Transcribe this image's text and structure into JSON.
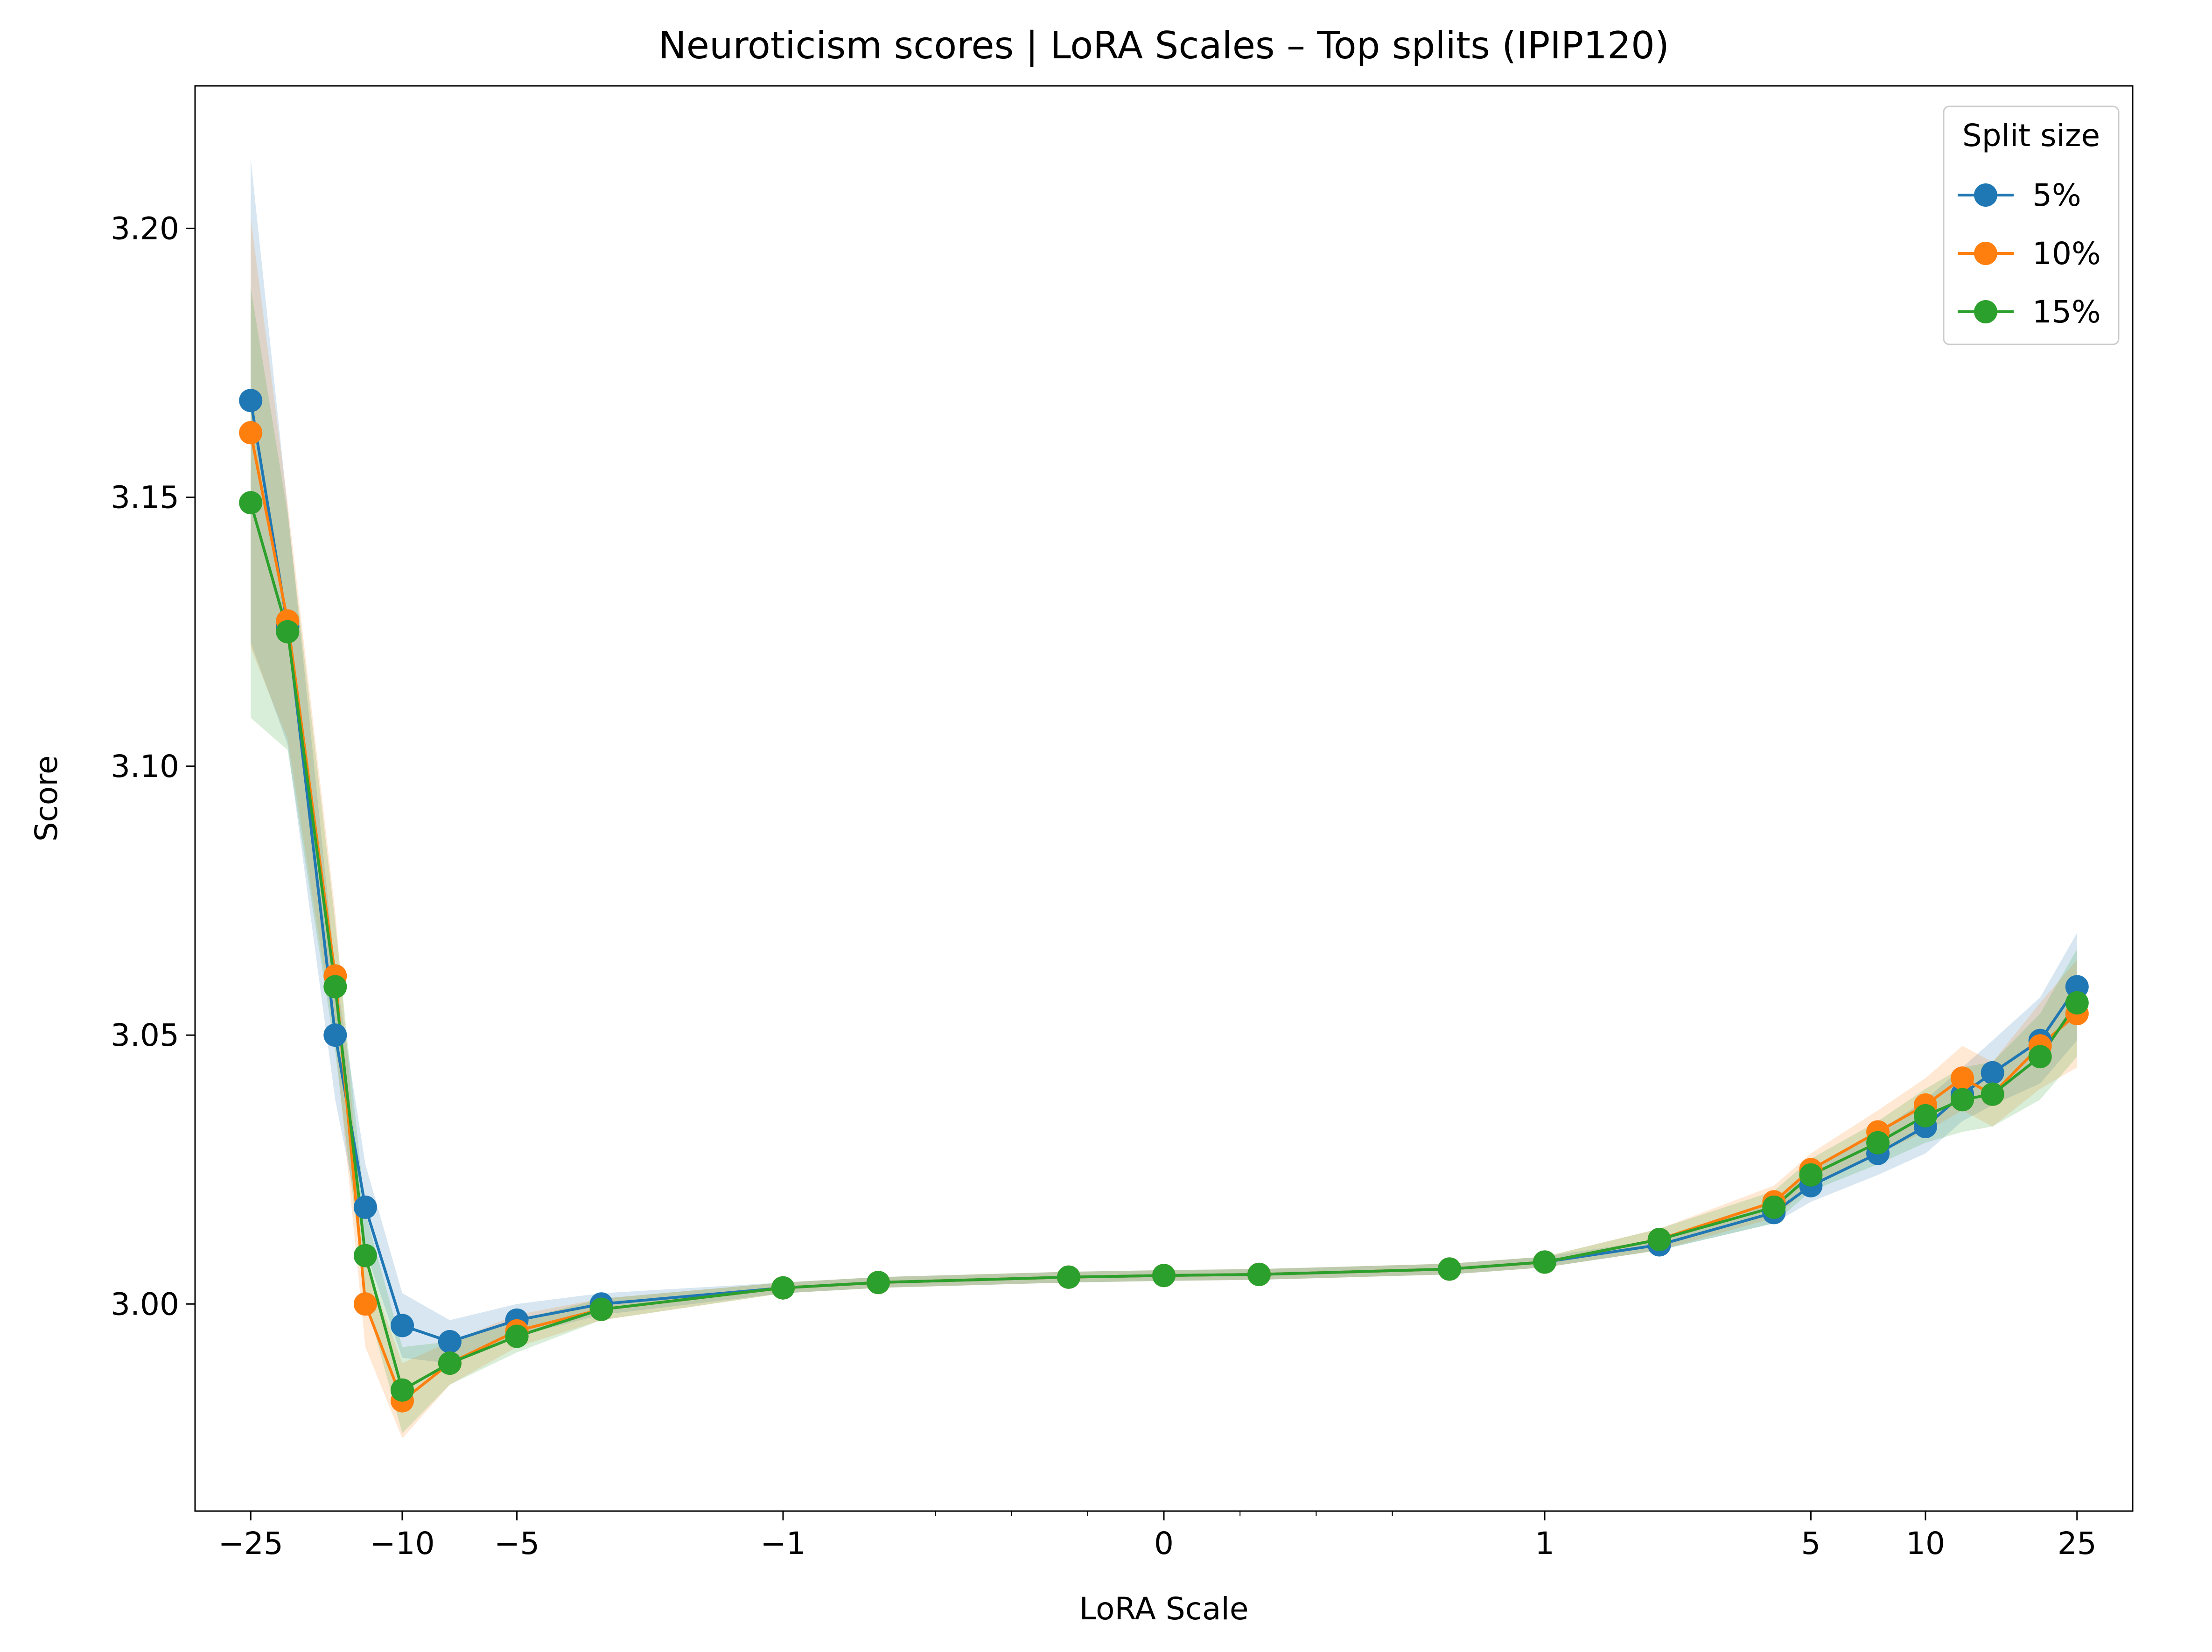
{
  "chart_data": {
    "type": "line",
    "title": "Neuroticism scores | LoRA Scales – Top splits (IPIP120)",
    "xlabel": "LoRA Scale",
    "ylabel": "Score",
    "xscale": "symlog",
    "xlim": [
      -35,
      35
    ],
    "ylim": [
      2.9615,
      3.2265
    ],
    "xticks": [
      {
        "value": -25,
        "label": "−25"
      },
      {
        "value": -10,
        "label": "−10"
      },
      {
        "value": -5,
        "label": "−5"
      },
      {
        "value": -1,
        "label": "−1"
      },
      {
        "value": 0,
        "label": "0"
      },
      {
        "value": 1,
        "label": "1"
      },
      {
        "value": 5,
        "label": "5"
      },
      {
        "value": 10,
        "label": "10"
      },
      {
        "value": 25,
        "label": "25"
      }
    ],
    "minor_xticks": [
      -0.6,
      -0.4,
      -0.2,
      0.2,
      0.4,
      0.6
    ],
    "yticks": [
      {
        "value": 3.0,
        "label": "3.00"
      },
      {
        "value": 3.05,
        "label": "3.05"
      },
      {
        "value": 3.1,
        "label": "3.10"
      },
      {
        "value": 3.15,
        "label": "3.15"
      },
      {
        "value": 3.2,
        "label": "3.20"
      }
    ],
    "grid": false,
    "legend": {
      "title": "Split size",
      "position": "top-right"
    },
    "x": [
      -25,
      -20,
      -15,
      -12.5,
      -10,
      -7.5,
      -5,
      -3,
      -1,
      -0.75,
      -0.25,
      0,
      0.25,
      0.75,
      1,
      2,
      4,
      5,
      7.5,
      10,
      12.5,
      15,
      20,
      25
    ],
    "series": [
      {
        "name": "5%",
        "color": "#1f77b4",
        "values": [
          3.168,
          3.126,
          3.05,
          3.018,
          2.996,
          2.993,
          2.997,
          3.0,
          3.003,
          3.004,
          3.005,
          3.0053,
          3.0055,
          3.0065,
          3.0078,
          3.011,
          3.017,
          3.022,
          3.028,
          3.033,
          3.039,
          3.043,
          3.049,
          3.059
        ],
        "band": [
          0.045,
          0.022,
          0.012,
          0.008,
          0.006,
          0.004,
          0.003,
          0.002,
          0.001,
          0.001,
          0.001,
          0.001,
          0.001,
          0.001,
          0.001,
          0.001,
          0.002,
          0.003,
          0.004,
          0.005,
          0.005,
          0.006,
          0.008,
          0.01
        ]
      },
      {
        "name": "10%",
        "color": "#ff7f0e",
        "values": [
          3.162,
          3.127,
          3.061,
          3.0,
          2.982,
          2.989,
          2.995,
          2.999,
          3.003,
          3.004,
          3.005,
          3.0053,
          3.0055,
          3.0065,
          3.0078,
          3.012,
          3.019,
          3.025,
          3.032,
          3.037,
          3.042,
          3.039,
          3.048,
          3.054
        ],
        "band": [
          0.04,
          0.022,
          0.012,
          0.008,
          0.007,
          0.004,
          0.003,
          0.002,
          0.001,
          0.001,
          0.001,
          0.001,
          0.001,
          0.001,
          0.001,
          0.002,
          0.003,
          0.003,
          0.004,
          0.005,
          0.006,
          0.006,
          0.008,
          0.01
        ]
      },
      {
        "name": "15%",
        "color": "#2ca02c",
        "values": [
          3.149,
          3.125,
          3.059,
          3.009,
          2.984,
          2.989,
          2.994,
          2.999,
          3.003,
          3.004,
          3.005,
          3.0053,
          3.0055,
          3.0065,
          3.0078,
          3.012,
          3.018,
          3.024,
          3.03,
          3.035,
          3.038,
          3.039,
          3.046,
          3.056
        ],
        "band": [
          0.04,
          0.022,
          0.012,
          0.008,
          0.008,
          0.004,
          0.003,
          0.002,
          0.001,
          0.001,
          0.001,
          0.001,
          0.001,
          0.001,
          0.001,
          0.002,
          0.003,
          0.003,
          0.004,
          0.005,
          0.006,
          0.006,
          0.008,
          0.01
        ]
      }
    ]
  }
}
